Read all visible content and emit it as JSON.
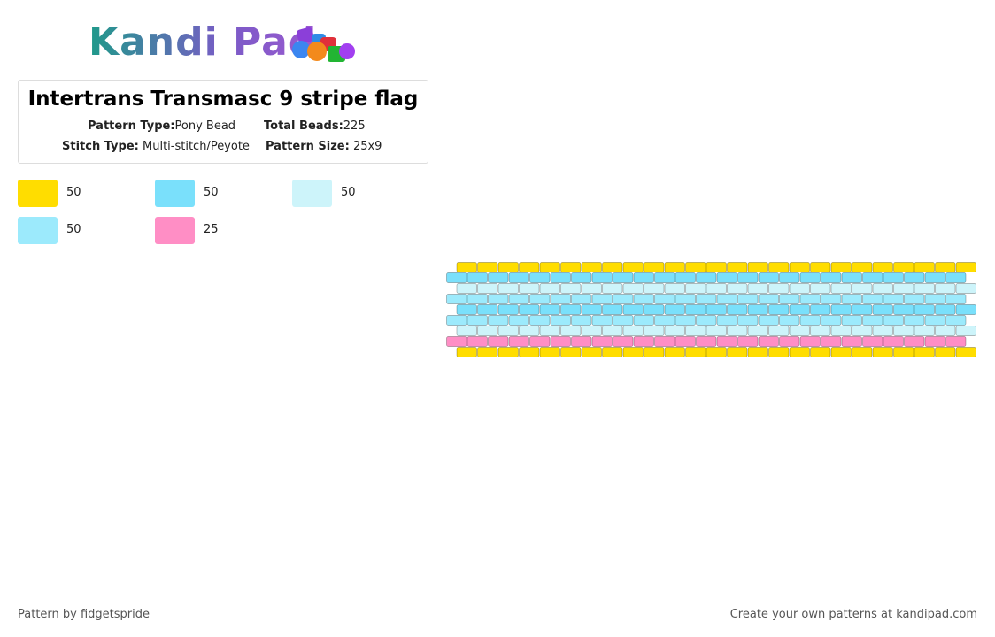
{
  "header": {
    "logo": "Kandi Pad",
    "title": "Intertrans Transmasc 9 stripe flag",
    "pattern_type_label": "Pattern Type:",
    "pattern_type": "Pony Bead",
    "total_beads_label": "Total Beads:",
    "total_beads": 225,
    "stitch_type_label": "Stitch Type:",
    "stitch_type": "Multi-stitch/Peyote",
    "pattern_size_label": "Pattern Size:",
    "pattern_size": "25x9"
  },
  "legend": [
    {
      "color": "#ffdd00",
      "count": 50
    },
    {
      "color": "#7ae0fb",
      "count": 50
    },
    {
      "color": "#cdf4fa",
      "count": 50
    },
    {
      "color": "#9ceafc",
      "count": 50
    },
    {
      "color": "#ff8ec5",
      "count": 25
    }
  ],
  "pattern": {
    "rows": [
      [
        0,
        0,
        0,
        0,
        0,
        0,
        0,
        0,
        0,
        0,
        0,
        0,
        0,
        0,
        0,
        0,
        0,
        0,
        0,
        0,
        0,
        0,
        0,
        0,
        0
      ],
      [
        1,
        1,
        1,
        1,
        1,
        1,
        1,
        1,
        1,
        1,
        1,
        1,
        1,
        1,
        1,
        1,
        1,
        1,
        1,
        1,
        1,
        1,
        1,
        1,
        1
      ],
      [
        2,
        2,
        2,
        2,
        2,
        2,
        2,
        2,
        2,
        2,
        2,
        2,
        2,
        2,
        2,
        2,
        2,
        2,
        2,
        2,
        2,
        2,
        2,
        2,
        2
      ],
      [
        3,
        3,
        3,
        3,
        3,
        3,
        3,
        3,
        3,
        3,
        3,
        3,
        3,
        3,
        3,
        3,
        3,
        3,
        3,
        3,
        3,
        3,
        3,
        3,
        3
      ],
      [
        1,
        1,
        1,
        1,
        1,
        1,
        1,
        1,
        1,
        1,
        1,
        1,
        1,
        1,
        1,
        1,
        1,
        1,
        1,
        1,
        1,
        1,
        1,
        1,
        1
      ],
      [
        3,
        3,
        3,
        3,
        3,
        3,
        3,
        3,
        3,
        3,
        3,
        3,
        3,
        3,
        3,
        3,
        3,
        3,
        3,
        3,
        3,
        3,
        3,
        3,
        3
      ],
      [
        2,
        2,
        2,
        2,
        2,
        2,
        2,
        2,
        2,
        2,
        2,
        2,
        2,
        2,
        2,
        2,
        2,
        2,
        2,
        2,
        2,
        2,
        2,
        2,
        2
      ],
      [
        4,
        4,
        4,
        4,
        4,
        4,
        4,
        4,
        4,
        4,
        4,
        4,
        4,
        4,
        4,
        4,
        4,
        4,
        4,
        4,
        4,
        4,
        4,
        4,
        4
      ],
      [
        0,
        0,
        0,
        0,
        0,
        0,
        0,
        0,
        0,
        0,
        0,
        0,
        0,
        0,
        0,
        0,
        0,
        0,
        0,
        0,
        0,
        0,
        0,
        0,
        0
      ]
    ]
  },
  "footer": {
    "credit": "Pattern by fidgetspride",
    "promo": "Create your own patterns at kandipad.com"
  }
}
